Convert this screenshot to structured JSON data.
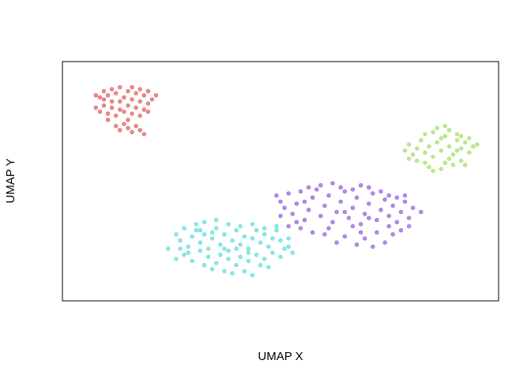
{
  "chart_data": {
    "type": "scatter",
    "title": "",
    "xlabel": "UMAP X",
    "ylabel": "UMAP Y",
    "xlim": [
      0,
      100
    ],
    "ylim": [
      0,
      100
    ],
    "grid": false,
    "legend": "none",
    "series": [
      {
        "color": "#E06666",
        "points": [
          [
            4,
            92
          ],
          [
            5,
            91
          ],
          [
            6,
            94
          ],
          [
            7,
            92
          ],
          [
            8,
            95
          ],
          [
            9,
            93
          ],
          [
            10,
            96
          ],
          [
            11,
            91
          ],
          [
            12,
            94
          ],
          [
            13,
            96
          ],
          [
            14,
            93
          ],
          [
            15,
            95
          ],
          [
            16,
            92
          ],
          [
            17,
            94
          ],
          [
            18,
            90
          ],
          [
            19,
            92
          ],
          [
            4,
            86
          ],
          [
            5,
            84
          ],
          [
            6,
            87
          ],
          [
            7,
            83
          ],
          [
            8,
            86
          ],
          [
            9,
            82
          ],
          [
            10,
            85
          ],
          [
            11,
            84
          ],
          [
            12,
            87
          ],
          [
            13,
            83
          ],
          [
            14,
            86
          ],
          [
            15,
            82
          ],
          [
            16,
            85
          ],
          [
            17,
            84
          ],
          [
            8,
            89
          ],
          [
            10,
            89
          ],
          [
            13,
            90
          ],
          [
            15,
            89
          ],
          [
            9,
            77
          ],
          [
            10,
            75
          ],
          [
            11,
            78
          ],
          [
            12,
            76
          ],
          [
            13,
            74
          ],
          [
            14,
            77
          ],
          [
            15,
            75
          ],
          [
            16,
            73
          ],
          [
            12,
            80
          ],
          [
            7,
            80
          ],
          [
            6,
            90
          ],
          [
            17,
            88
          ]
        ]
      },
      {
        "color": "#66DDDD",
        "points": [
          [
            24,
            24
          ],
          [
            25,
            21
          ],
          [
            26,
            27
          ],
          [
            27,
            18
          ],
          [
            28,
            23
          ],
          [
            29,
            26
          ],
          [
            30,
            20
          ],
          [
            31,
            24
          ],
          [
            32,
            17
          ],
          [
            33,
            22
          ],
          [
            34,
            27
          ],
          [
            35,
            19
          ],
          [
            36,
            24
          ],
          [
            37,
            16
          ],
          [
            38,
            21
          ],
          [
            39,
            26
          ],
          [
            40,
            19
          ],
          [
            41,
            23
          ],
          [
            42,
            17
          ],
          [
            43,
            22
          ],
          [
            44,
            26
          ],
          [
            45,
            20
          ],
          [
            46,
            24
          ],
          [
            47,
            18
          ],
          [
            48,
            22
          ],
          [
            49,
            26
          ],
          [
            50,
            21
          ],
          [
            51,
            17
          ],
          [
            26,
            14
          ],
          [
            28,
            11
          ],
          [
            30,
            16
          ],
          [
            32,
            13
          ],
          [
            34,
            10
          ],
          [
            35,
            14
          ],
          [
            37,
            12
          ],
          [
            39,
            9
          ],
          [
            40,
            13
          ],
          [
            42,
            11
          ],
          [
            44,
            14
          ],
          [
            45,
            9
          ],
          [
            46,
            12
          ],
          [
            48,
            15
          ],
          [
            50,
            13
          ],
          [
            52,
            18
          ],
          [
            25,
            17
          ],
          [
            27,
            15
          ],
          [
            31,
            9
          ],
          [
            33,
            7
          ],
          [
            36,
            6
          ],
          [
            38,
            5
          ],
          [
            41,
            6
          ],
          [
            43,
            4
          ],
          [
            29,
            29
          ],
          [
            31,
            30
          ],
          [
            34,
            31
          ],
          [
            37,
            29
          ],
          [
            40,
            28
          ],
          [
            43,
            29
          ],
          [
            46,
            27
          ],
          [
            49,
            28
          ],
          [
            52,
            22
          ],
          [
            22,
            17
          ],
          [
            24,
            12
          ],
          [
            53,
            15
          ],
          [
            36,
            17
          ],
          [
            39,
            17
          ],
          [
            42,
            15
          ],
          [
            47,
            8
          ],
          [
            30,
            26
          ],
          [
            33,
            25
          ]
        ]
      },
      {
        "color": "#9966DD",
        "points": [
          [
            49,
            43
          ],
          [
            50,
            40
          ],
          [
            51,
            37
          ],
          [
            52,
            44
          ],
          [
            53,
            34
          ],
          [
            54,
            39
          ],
          [
            55,
            45
          ],
          [
            56,
            31
          ],
          [
            57,
            36
          ],
          [
            58,
            42
          ],
          [
            59,
            46
          ],
          [
            60,
            33
          ],
          [
            61,
            38
          ],
          [
            62,
            43
          ],
          [
            63,
            30
          ],
          [
            64,
            35
          ],
          [
            65,
            40
          ],
          [
            66,
            45
          ],
          [
            67,
            32
          ],
          [
            68,
            37
          ],
          [
            69,
            42
          ],
          [
            70,
            29
          ],
          [
            71,
            34
          ],
          [
            72,
            39
          ],
          [
            73,
            44
          ],
          [
            74,
            31
          ],
          [
            75,
            36
          ],
          [
            76,
            41
          ],
          [
            77,
            33
          ],
          [
            78,
            38
          ],
          [
            79,
            30
          ],
          [
            80,
            35
          ],
          [
            81,
            40
          ],
          [
            82,
            32
          ],
          [
            83,
            37
          ],
          [
            52,
            28
          ],
          [
            55,
            27
          ],
          [
            58,
            25
          ],
          [
            61,
            24
          ],
          [
            64,
            20
          ],
          [
            66,
            23
          ],
          [
            69,
            19
          ],
          [
            71,
            22
          ],
          [
            73,
            18
          ],
          [
            76,
            20
          ],
          [
            78,
            24
          ],
          [
            80,
            26
          ],
          [
            82,
            28
          ],
          [
            57,
            47
          ],
          [
            60,
            48
          ],
          [
            63,
            49
          ],
          [
            65,
            47
          ],
          [
            68,
            46
          ],
          [
            70,
            48
          ],
          [
            72,
            47
          ],
          [
            75,
            45
          ],
          [
            77,
            43
          ],
          [
            79,
            42
          ],
          [
            81,
            43
          ],
          [
            68,
            28
          ],
          [
            70,
            25
          ],
          [
            74,
            25
          ],
          [
            62,
            27
          ],
          [
            56,
            40
          ],
          [
            66,
            35
          ],
          [
            72,
            32
          ],
          [
            77,
            28
          ],
          [
            54,
            30
          ],
          [
            50,
            33
          ],
          [
            85,
            35
          ]
        ]
      },
      {
        "color": "#A8E070",
        "points": [
          [
            81,
            65
          ],
          [
            82,
            68
          ],
          [
            83,
            63
          ],
          [
            84,
            66
          ],
          [
            85,
            70
          ],
          [
            86,
            64
          ],
          [
            87,
            67
          ],
          [
            88,
            62
          ],
          [
            89,
            69
          ],
          [
            90,
            65
          ],
          [
            91,
            72
          ],
          [
            92,
            67
          ],
          [
            93,
            63
          ],
          [
            94,
            70
          ],
          [
            95,
            66
          ],
          [
            96,
            69
          ],
          [
            97,
            64
          ],
          [
            98,
            67
          ],
          [
            99,
            68
          ],
          [
            84,
            60
          ],
          [
            86,
            59
          ],
          [
            87,
            57
          ],
          [
            88,
            55
          ],
          [
            90,
            56
          ],
          [
            91,
            59
          ],
          [
            93,
            58
          ],
          [
            95,
            60
          ],
          [
            96,
            58
          ],
          [
            86,
            73
          ],
          [
            88,
            74
          ],
          [
            89,
            76
          ],
          [
            91,
            77
          ],
          [
            92,
            75
          ],
          [
            94,
            73
          ],
          [
            90,
            71
          ],
          [
            97,
            71
          ],
          [
            95,
            72
          ],
          [
            92,
            61
          ],
          [
            94,
            65
          ],
          [
            82,
            61
          ]
        ]
      }
    ]
  }
}
